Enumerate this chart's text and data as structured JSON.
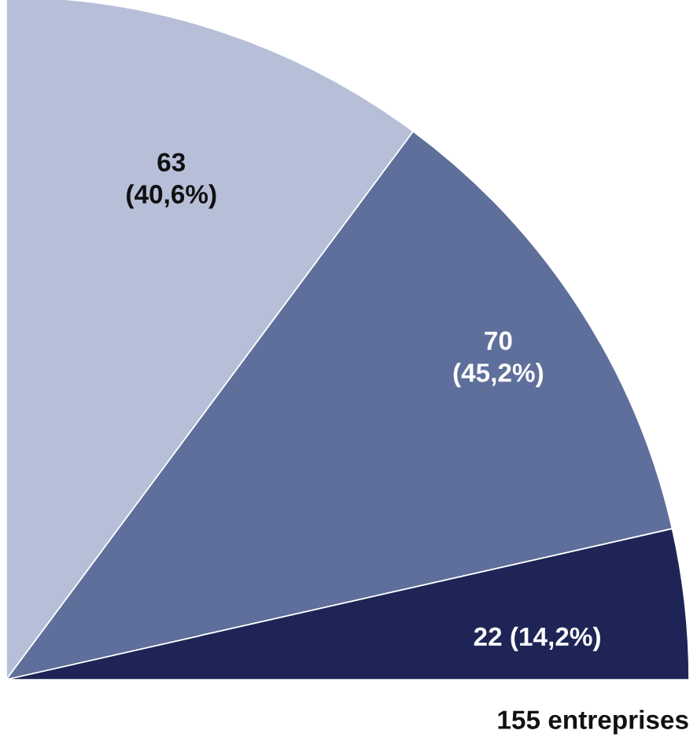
{
  "chart_data": {
    "type": "pie",
    "categories": [
      null,
      null,
      null
    ],
    "values": [
      63,
      70,
      22
    ],
    "colors": [
      "#b7bfd8",
      "#5f6f9b",
      "#1e2556"
    ],
    "value_labels": [
      "63\n(40,6%)",
      "70\n(45,2%)",
      "22 (14,2%)"
    ],
    "annotations": [
      "155 entreprises"
    ]
  }
}
